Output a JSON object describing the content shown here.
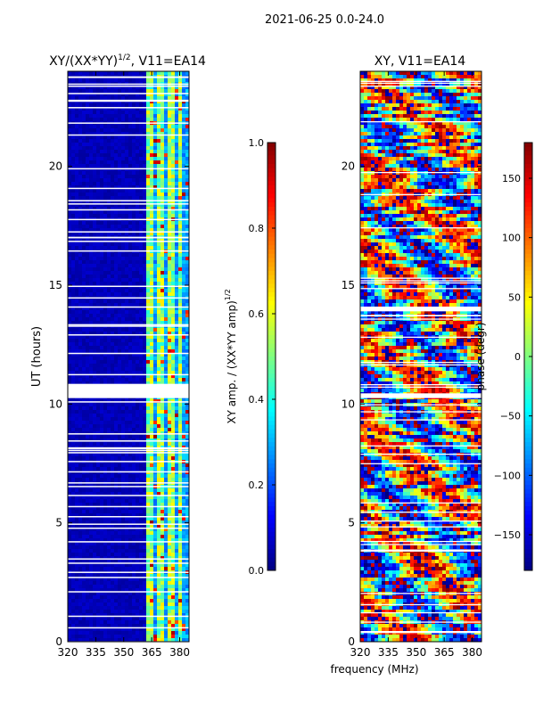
{
  "figure": {
    "suptitle": "2021-06-25 0.0-24.0"
  },
  "chart_data": [
    {
      "type": "heatmap",
      "title_main": "XY/(XX*YY)",
      "title_sup": "1/2",
      "title_tail": ", V11=EA14",
      "xlabel": "",
      "ylabel": "UT (hours)",
      "xlim": [
        320,
        385
      ],
      "ylim": [
        0,
        24
      ],
      "xticks": [
        320,
        335,
        350,
        365,
        380
      ],
      "yticks": [
        0,
        5,
        10,
        15,
        20
      ],
      "colorscale": "jet",
      "bright_channel_start_mhz": 362,
      "bright_channel_columns_mhz": [
        364.5,
        369.5,
        375,
        380.5
      ],
      "flagged_gap_ut": [
        [
          10.25,
          10.85
        ]
      ],
      "colorbar": {
        "label_main": "XY amp. / (XX*YY amp)",
        "label_sup": "1/2",
        "range": [
          0.0,
          1.0
        ],
        "ticks": [
          "0.0",
          "0.2",
          "0.4",
          "0.6",
          "0.8",
          "1.0"
        ]
      }
    },
    {
      "type": "heatmap",
      "title": "XY, V11=EA14",
      "xlabel": "frequency (MHz)",
      "ylabel": "",
      "xlim": [
        320,
        385
      ],
      "ylim": [
        0,
        24
      ],
      "xticks": [
        320,
        335,
        350,
        365,
        380
      ],
      "yticks": [
        0,
        5,
        10,
        15,
        20
      ],
      "colorscale": "jet",
      "flagged_gap_ut": [
        [
          10.25,
          10.45
        ],
        [
          13.9,
          14.1
        ]
      ],
      "colorbar": {
        "label": "phase (degr)",
        "range": [
          -180,
          180
        ],
        "ticks": [
          "150",
          "100",
          "50",
          "0",
          "−50",
          "−100",
          "−150"
        ]
      }
    }
  ]
}
